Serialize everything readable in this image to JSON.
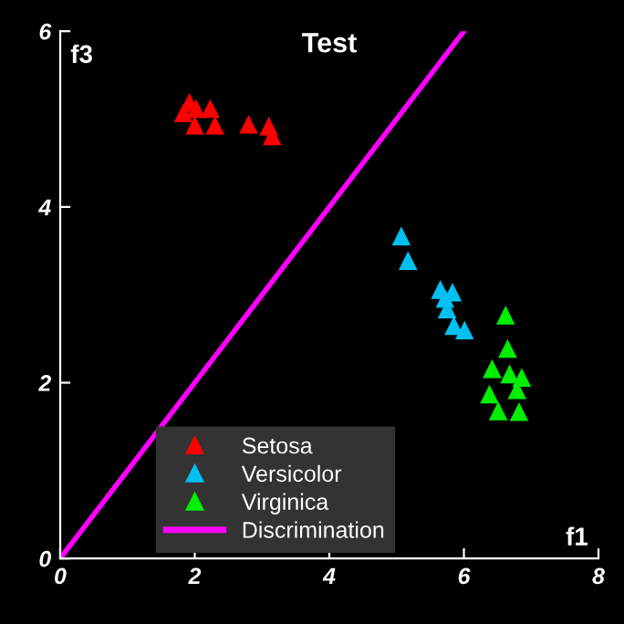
{
  "chart_data": {
    "type": "scatter",
    "title": "Test",
    "xlabel": "f1",
    "ylabel": "f3",
    "xlim": [
      0,
      8
    ],
    "ylim": [
      0,
      6
    ],
    "xticks": [
      0,
      2,
      4,
      6,
      8
    ],
    "yticks": [
      0,
      2,
      4,
      6
    ],
    "grid": false,
    "legend": "bottom",
    "marker": "triangle",
    "series": [
      {
        "name": "Setosa",
        "color": "#ff0000",
        "x": [
          1.83,
          1.92,
          2.02,
          2.23,
          2.0,
          2.24,
          2.3,
          2.8,
          3.1,
          3.15
        ],
        "values": [
          5.07,
          5.19,
          5.12,
          5.12,
          4.93,
          null,
          4.93,
          4.94,
          4.92,
          4.81
        ]
      },
      {
        "name": "Versicolor",
        "color": "#00c0f0",
        "x": [
          5.07,
          5.17,
          5.65,
          5.83,
          5.72,
          5.75,
          5.79,
          5.85,
          6.01
        ],
        "values": [
          3.67,
          3.39,
          3.06,
          3.03,
          2.96,
          2.84,
          null,
          2.65,
          2.6
        ]
      },
      {
        "name": "Virginica",
        "color": "#00ee00",
        "x": [
          6.62,
          6.65,
          6.42,
          6.68,
          6.86,
          6.79,
          6.38,
          6.47,
          6.51,
          6.82
        ],
        "values": [
          2.77,
          2.39,
          2.16,
          2.1,
          2.06,
          1.92,
          1.87,
          null,
          1.68,
          1.67
        ]
      },
      {
        "name": "Discrimination",
        "type": "line",
        "color": "#ff00ff",
        "x": [
          0,
          6
        ],
        "values": [
          0,
          6
        ],
        "marker": "none",
        "line_style": "solid"
      }
    ]
  }
}
